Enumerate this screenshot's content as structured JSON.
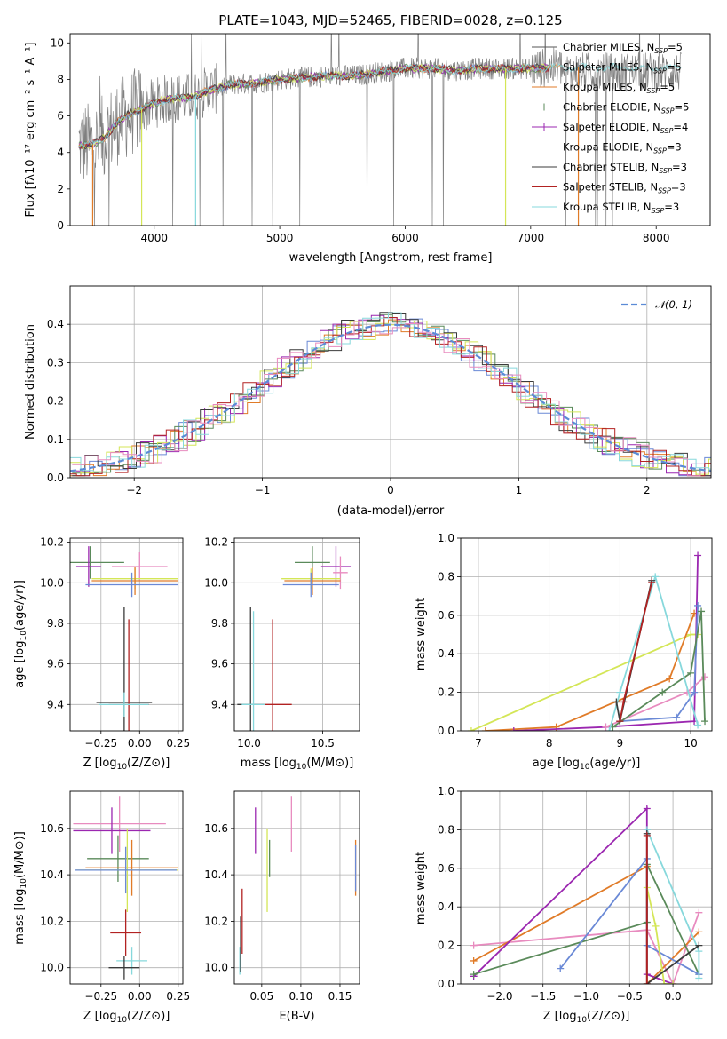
{
  "chart_data": [
    {
      "type": "line",
      "title": "PLATE=1043, MJD=52465, FIBERID=0028, z=0.125",
      "xlabel": "wavelength [Angstrom, rest frame]",
      "ylabel": "Flux [fλ10⁻¹⁷ erg cm⁻² s⁻¹ A⁻¹]",
      "xlim": [
        3330,
        8430
      ],
      "ylim": [
        0,
        10.5
      ],
      "xticks": [
        4000,
        5000,
        6000,
        7000,
        8000
      ],
      "yticks": [
        0,
        2,
        4,
        6,
        8,
        10
      ],
      "grid": false,
      "legend_position": "upper right",
      "continuum": [
        [
          3400,
          4.4
        ],
        [
          3500,
          4.4
        ],
        [
          3600,
          4.8
        ],
        [
          3700,
          5.6
        ],
        [
          3800,
          6.1
        ],
        [
          3900,
          6.4
        ],
        [
          4000,
          6.7
        ],
        [
          4100,
          6.9
        ],
        [
          4200,
          7.0
        ],
        [
          4300,
          7.0
        ],
        [
          4400,
          7.3
        ],
        [
          4500,
          7.5
        ],
        [
          4600,
          7.7
        ],
        [
          4800,
          7.8
        ],
        [
          5000,
          8.0
        ],
        [
          5200,
          8.1
        ],
        [
          5400,
          8.2
        ],
        [
          5600,
          8.2
        ],
        [
          5800,
          8.4
        ],
        [
          6000,
          8.6
        ],
        [
          6200,
          8.6
        ],
        [
          6400,
          8.5
        ],
        [
          6600,
          8.6
        ],
        [
          6800,
          8.6
        ],
        [
          7000,
          8.6
        ],
        [
          7200,
          8.65
        ]
      ],
      "series": [
        {
          "name": "Chabrier MILES, N_SSP=5",
          "color": "#555555"
        },
        {
          "name": "Salpeter MILES, N_SSP=5",
          "color": "#6a89d6"
        },
        {
          "name": "Kroupa MILES, N_SSP=5",
          "color": "#e07b28"
        },
        {
          "name": "Chabrier ELODIE, N_SSP=5",
          "color": "#5a8a5a"
        },
        {
          "name": "Salpeter ELODIE, N_SSP=4",
          "color": "#9b27b0"
        },
        {
          "name": "Kroupa ELODIE, N_SSP=3",
          "color": "#d4e657"
        },
        {
          "name": "Chabrier STELIB, N_SSP=3",
          "color": "#3b3b3b"
        },
        {
          "name": "Salpeter STELIB, N_SSP=3",
          "color": "#b22222"
        },
        {
          "name": "Kroupa STELIB, N_SSP=3",
          "color": "#87d8dc"
        }
      ]
    },
    {
      "type": "line",
      "xlabel": "(data-model)/error",
      "ylabel": "Normed distribution",
      "xlim": [
        -2.5,
        2.5
      ],
      "ylim": [
        0,
        0.5
      ],
      "xticks": [
        -2,
        -1,
        0,
        1,
        2
      ],
      "yticks": [
        0.0,
        0.1,
        0.2,
        0.3,
        0.4
      ],
      "grid": true,
      "legend": "𝒩(0, 1)",
      "legend_position": "upper right",
      "histogram_series_colors": [
        "#6a89d6",
        "#e07b28",
        "#5a8a5a",
        "#9b27b0",
        "#d4e657",
        "#3b3b3b",
        "#b22222",
        "#87d8dc",
        "#e88bbf"
      ]
    },
    {
      "type": "scatter",
      "xlabel": "Z [log10(Z/Z⊙)]",
      "ylabel": "age  [log10(age/yr)]",
      "xlim": [
        -0.45,
        0.28
      ],
      "ylim": [
        9.27,
        10.22
      ],
      "xticks": [
        -0.25,
        0.0,
        0.25
      ],
      "yticks": [
        9.4,
        9.6,
        9.8,
        10.0,
        10.2
      ],
      "grid": true,
      "points": [
        {
          "x": -0.32,
          "y": 10.1,
          "ex": 0.22,
          "ey": 0.08,
          "color": "#5a8a5a"
        },
        {
          "x": -0.33,
          "y": 10.08,
          "ex": 0.08,
          "ey": 0.1,
          "color": "#9b27b0"
        },
        {
          "x": 0.0,
          "y": 10.08,
          "ex": 0.18,
          "ey": 0.07,
          "color": "#e88bbf"
        },
        {
          "x": -0.03,
          "y": 10.02,
          "ex": 0.28,
          "ey": 0.05,
          "color": "#d4e657"
        },
        {
          "x": -0.03,
          "y": 10.01,
          "ex": 0.28,
          "ey": 0.07,
          "color": "#e07b28"
        },
        {
          "x": -0.05,
          "y": 9.99,
          "ex": 0.3,
          "ey": 0.06,
          "color": "#6a89d6"
        },
        {
          "x": -0.1,
          "y": 9.41,
          "ex": 0.18,
          "ey": 0.47,
          "color": "#3b3b3b"
        },
        {
          "x": -0.07,
          "y": 9.4,
          "ex": 0.13,
          "ey": 0.42,
          "color": "#b22222"
        },
        {
          "x": -0.1,
          "y": 9.4,
          "ex": 0.16,
          "ey": 0.06,
          "color": "#87d8dc"
        }
      ]
    },
    {
      "type": "scatter",
      "xlabel": "mass [log10(M/M⊙)]",
      "xlim": [
        9.9,
        10.75
      ],
      "ylim": [
        9.27,
        10.22
      ],
      "xticks": [
        10.0,
        10.5
      ],
      "yticks": [
        9.4,
        9.6,
        9.8,
        10.0,
        10.2
      ],
      "grid": true,
      "points": [
        {
          "x": 10.43,
          "y": 10.1,
          "ex": 0.12,
          "ey": 0.08,
          "color": "#5a8a5a"
        },
        {
          "x": 10.59,
          "y": 10.08,
          "ex": 0.1,
          "ey": 0.1,
          "color": "#9b27b0"
        },
        {
          "x": 10.62,
          "y": 10.05,
          "ex": 0.05,
          "ey": 0.08,
          "color": "#e88bbf"
        },
        {
          "x": 10.42,
          "y": 10.02,
          "ex": 0.2,
          "ey": 0.05,
          "color": "#d4e657"
        },
        {
          "x": 10.43,
          "y": 10.01,
          "ex": 0.19,
          "ey": 0.07,
          "color": "#e07b28"
        },
        {
          "x": 10.42,
          "y": 9.99,
          "ex": 0.19,
          "ey": 0.06,
          "color": "#6a89d6"
        },
        {
          "x": 10.01,
          "y": 9.4,
          "ex": 0.09,
          "ey": 0.48,
          "color": "#3b3b3b"
        },
        {
          "x": 10.16,
          "y": 9.4,
          "ex": 0.13,
          "ey": 0.42,
          "color": "#b22222"
        },
        {
          "x": 10.03,
          "y": 9.4,
          "ex": 0.08,
          "ey": 0.46,
          "color": "#87d8dc"
        }
      ]
    },
    {
      "type": "line",
      "xlabel": "age  [log10(age/yr)]",
      "ylabel": "mass weight",
      "xlim": [
        6.75,
        10.3
      ],
      "ylim": [
        0,
        1
      ],
      "xticks": [
        7,
        8,
        9,
        10
      ],
      "yticks": [
        0.0,
        0.2,
        0.4,
        0.6,
        0.8,
        1.0
      ],
      "grid": true,
      "series": [
        {
          "color": "#d4e657",
          "x": [
            6.9,
            10.0,
            10.1
          ],
          "y": [
            0.0,
            0.5,
            0.5
          ]
        },
        {
          "color": "#e07b28",
          "x": [
            7.1,
            8.1,
            9.7,
            10.05
          ],
          "y": [
            0.0,
            0.02,
            0.27,
            0.61
          ]
        },
        {
          "color": "#9b27b0",
          "x": [
            7.5,
            8.8,
            10.05,
            10.1
          ],
          "y": [
            0.0,
            0.02,
            0.05,
            0.91
          ]
        },
        {
          "color": "#e88bbf",
          "x": [
            8.8,
            9.95,
            10.2
          ],
          "y": [
            0.02,
            0.2,
            0.28
          ]
        },
        {
          "color": "#6a89d6",
          "x": [
            9.0,
            9.8,
            10.05,
            10.1
          ],
          "y": [
            0.05,
            0.07,
            0.2,
            0.65
          ]
        },
        {
          "color": "#5a8a5a",
          "x": [
            8.9,
            9.6,
            10.0,
            10.15,
            10.2
          ],
          "y": [
            0.02,
            0.2,
            0.3,
            0.62,
            0.05
          ]
        },
        {
          "color": "#87d8dc",
          "x": [
            8.85,
            9.0,
            9.5,
            10.1
          ],
          "y": [
            0.0,
            0.2,
            0.8,
            0.03
          ]
        },
        {
          "color": "#3b3b3b",
          "x": [
            8.95,
            9.0,
            9.45
          ],
          "y": [
            0.15,
            0.05,
            0.78
          ]
        },
        {
          "color": "#b22222",
          "x": [
            9.0,
            9.05,
            9.45
          ],
          "y": [
            0.05,
            0.15,
            0.77
          ]
        }
      ]
    },
    {
      "type": "scatter",
      "xlabel": "Z [log10(Z/Z⊙)]",
      "ylabel": "mass [log10(M/M⊙)]",
      "xlim": [
        -0.45,
        0.28
      ],
      "ylim": [
        9.93,
        10.76
      ],
      "xticks": [
        -0.25,
        0.0,
        0.25
      ],
      "yticks": [
        10.0,
        10.2,
        10.4,
        10.6
      ],
      "grid": true,
      "points": [
        {
          "x": -0.13,
          "y": 10.62,
          "ex": 0.3,
          "ey": 0.12,
          "color": "#e88bbf"
        },
        {
          "x": -0.18,
          "y": 10.59,
          "ex": 0.25,
          "ey": 0.1,
          "color": "#9b27b0"
        },
        {
          "x": -0.14,
          "y": 10.47,
          "ex": 0.2,
          "ey": 0.1,
          "color": "#5a8a5a"
        },
        {
          "x": -0.05,
          "y": 10.43,
          "ex": 0.3,
          "ey": 0.12,
          "color": "#e07b28"
        },
        {
          "x": -0.08,
          "y": 10.42,
          "ex": 0.33,
          "ey": 0.18,
          "color": "#d4e657"
        },
        {
          "x": -0.09,
          "y": 10.42,
          "ex": 0.33,
          "ey": 0.1,
          "color": "#6a89d6"
        },
        {
          "x": -0.05,
          "y": 10.03,
          "ex": 0.1,
          "ey": 0.06,
          "color": "#87d8dc"
        },
        {
          "x": -0.1,
          "y": 10.0,
          "ex": 0.1,
          "ey": 0.05,
          "color": "#3b3b3b"
        },
        {
          "x": -0.09,
          "y": 10.15,
          "ex": 0.1,
          "ey": 0.1,
          "color": "#b22222"
        }
      ]
    },
    {
      "type": "scatter",
      "xlabel": "E(B-V)",
      "xlim": [
        0.015,
        0.175
      ],
      "ylim": [
        9.93,
        10.76
      ],
      "xticks": [
        0.05,
        0.1,
        0.15
      ],
      "yticks": [
        10.0,
        10.2,
        10.4,
        10.6
      ],
      "grid": true,
      "points": [
        {
          "x": 0.088,
          "y": 10.62,
          "ey": 0.12,
          "color": "#e88bbf"
        },
        {
          "x": 0.042,
          "y": 10.59,
          "ey": 0.1,
          "color": "#9b27b0"
        },
        {
          "x": 0.06,
          "y": 10.47,
          "ey": 0.08,
          "color": "#5a8a5a"
        },
        {
          "x": 0.17,
          "y": 10.43,
          "ey": 0.12,
          "color": "#e07b28"
        },
        {
          "x": 0.057,
          "y": 10.42,
          "ey": 0.18,
          "color": "#d4e657"
        },
        {
          "x": 0.17,
          "y": 10.43,
          "ey": 0.1,
          "color": "#6a89d6"
        },
        {
          "x": 0.022,
          "y": 10.03,
          "ey": 0.06,
          "color": "#87d8dc"
        },
        {
          "x": 0.023,
          "y": 10.1,
          "ey": 0.12,
          "color": "#3b3b3b"
        },
        {
          "x": 0.025,
          "y": 10.2,
          "ey": 0.14,
          "color": "#b22222"
        }
      ]
    },
    {
      "type": "line",
      "xlabel": "Z [log10(Z/Z⊙)]",
      "ylabel": "mass weight",
      "xlim": [
        -2.45,
        0.45
      ],
      "ylim": [
        0,
        1
      ],
      "xticks": [
        -2.0,
        -1.5,
        -1.0,
        -0.5,
        0.0
      ],
      "yticks": [
        0.0,
        0.2,
        0.4,
        0.6,
        0.8,
        1.0
      ],
      "grid": true,
      "series": [
        {
          "color": "#e88bbf",
          "x": [
            -2.3,
            -0.3,
            0.0,
            0.3
          ],
          "y": [
            0.2,
            0.28,
            0.0,
            0.37
          ]
        },
        {
          "color": "#e07b28",
          "x": [
            -2.3,
            -0.3,
            -0.3,
            0.3
          ],
          "y": [
            0.12,
            0.61,
            0.0,
            0.27
          ]
        },
        {
          "color": "#9b27b0",
          "x": [
            -2.3,
            -0.3,
            -0.3,
            0.0
          ],
          "y": [
            0.04,
            0.91,
            0.05,
            0.0
          ]
        },
        {
          "color": "#5a8a5a",
          "x": [
            -2.3,
            -0.3,
            -0.3,
            0.3
          ],
          "y": [
            0.05,
            0.32,
            0.62,
            0.05
          ]
        },
        {
          "color": "#6a89d6",
          "x": [
            -1.3,
            -0.3,
            -0.3,
            0.3
          ],
          "y": [
            0.08,
            0.65,
            0.2,
            0.05
          ]
        },
        {
          "color": "#d4e657",
          "x": [
            -0.3,
            -0.2,
            -0.1,
            0.0
          ],
          "y": [
            0.5,
            0.3,
            0.0,
            0.0
          ]
        },
        {
          "color": "#87d8dc",
          "x": [
            -0.3,
            0.3,
            0.3
          ],
          "y": [
            0.8,
            0.17,
            0.03
          ]
        },
        {
          "color": "#3b3b3b",
          "x": [
            -0.3,
            -0.3,
            0.3
          ],
          "y": [
            0.78,
            0.0,
            0.2
          ]
        },
        {
          "color": "#b22222",
          "x": [
            -0.3,
            -0.3
          ],
          "y": [
            0.77,
            0.0
          ]
        }
      ]
    }
  ]
}
